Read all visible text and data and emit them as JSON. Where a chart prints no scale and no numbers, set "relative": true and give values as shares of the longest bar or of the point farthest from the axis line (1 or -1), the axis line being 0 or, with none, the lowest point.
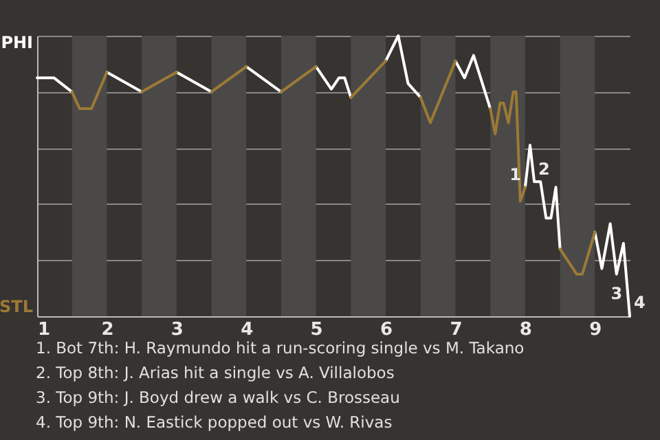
{
  "chart_data": {
    "type": "line",
    "relative": true,
    "series": [
      {
        "color": "#ffffff",
        "x": [
          1.0,
          1.24,
          1.5,
          1.75,
          2.0,
          2.5,
          2.75,
          3.0,
          3.5,
          3.75,
          4.0,
          4.5,
          4.75,
          5.0,
          5.22,
          5.33,
          5.41,
          5.5,
          5.75,
          6.0,
          6.18,
          6.32,
          6.5,
          6.75,
          7.0,
          7.13,
          7.26,
          7.5,
          7.75,
          8.0,
          8.07,
          8.13,
          8.22,
          8.3,
          8.37,
          8.44,
          8.5,
          8.75,
          9.0,
          9.1,
          9.22,
          9.31,
          9.41,
          9.5
        ],
        "values": [
          0.85,
          0.85,
          0.8,
          null,
          0.87,
          0.8,
          null,
          0.87,
          0.8,
          null,
          0.89,
          0.8,
          null,
          0.89,
          0.81,
          0.85,
          0.85,
          0.78,
          null,
          0.91,
          1.0,
          0.83,
          0.78,
          null,
          0.91,
          0.85,
          0.93,
          0.74,
          null,
          0.46,
          0.61,
          0.48,
          0.48,
          0.35,
          0.35,
          0.46,
          0.24,
          null,
          0.3,
          0.17,
          0.33,
          0.15,
          0.26,
          0.0
        ]
      },
      {
        "color": "#9c7a36",
        "x": [
          1.5,
          1.61,
          1.78,
          2.0,
          2.25,
          2.5,
          3.0,
          3.25,
          3.5,
          4.0,
          4.25,
          4.5,
          5.0,
          5.25,
          5.5,
          6.0,
          6.25,
          6.5,
          6.64,
          7.0,
          7.25,
          7.5,
          7.57,
          7.64,
          7.69,
          7.76,
          7.83,
          7.87,
          7.93,
          8.0,
          8.25,
          8.5,
          8.74,
          8.82,
          9.0
        ],
        "values": [
          0.8,
          0.74,
          0.74,
          0.87,
          null,
          0.8,
          0.87,
          null,
          0.8,
          0.89,
          null,
          0.8,
          0.89,
          null,
          0.78,
          0.91,
          null,
          0.78,
          0.69,
          0.91,
          null,
          0.74,
          0.65,
          0.76,
          0.76,
          0.69,
          0.8,
          0.8,
          0.41,
          0.46,
          null,
          0.24,
          0.15,
          0.15,
          0.3
        ]
      }
    ],
    "xlim": [
      1,
      9.5
    ],
    "xticks": [
      1,
      2,
      3,
      4,
      5,
      6,
      7,
      8,
      9
    ],
    "grid": "y",
    "bands": [
      {
        "axis": "x",
        "from": 1.5,
        "to": 2,
        "color": "#4a4948"
      },
      {
        "axis": "x",
        "from": 2.5,
        "to": 3,
        "color": "#4a4948"
      },
      {
        "axis": "x",
        "from": 3.5,
        "to": 4,
        "color": "#4a4948"
      },
      {
        "axis": "x",
        "from": 4.5,
        "to": 5,
        "color": "#4a4948"
      },
      {
        "axis": "x",
        "from": 5.5,
        "to": 6,
        "color": "#4a4948"
      },
      {
        "axis": "x",
        "from": 6.5,
        "to": 7,
        "color": "#4a4948"
      },
      {
        "axis": "x",
        "from": 7.5,
        "to": 8,
        "color": "#4a4948"
      },
      {
        "axis": "x",
        "from": 8.5,
        "to": 9,
        "color": "#4a4948"
      }
    ],
    "annotations": [
      {
        "text": "1",
        "x": 8.0,
        "y": 0.46
      },
      {
        "text": "2",
        "x": 8.13,
        "y": 0.48
      },
      {
        "text": "3",
        "x": 9.31,
        "y": 0.15
      },
      {
        "text": "4",
        "x": 9.5,
        "y": 0.0
      },
      "PHI",
      "STL",
      "1. Bot 7th: H. Raymundo hit a run-scoring single vs M. Takano",
      "2. Top 8th: J. Arias hit a single vs A. Villalobos",
      "3. Top 9th: J. Boyd drew a walk vs C. Brosseau",
      "4. Top 9th: N. Eastick popped out vs W. Rivas"
    ]
  }
}
